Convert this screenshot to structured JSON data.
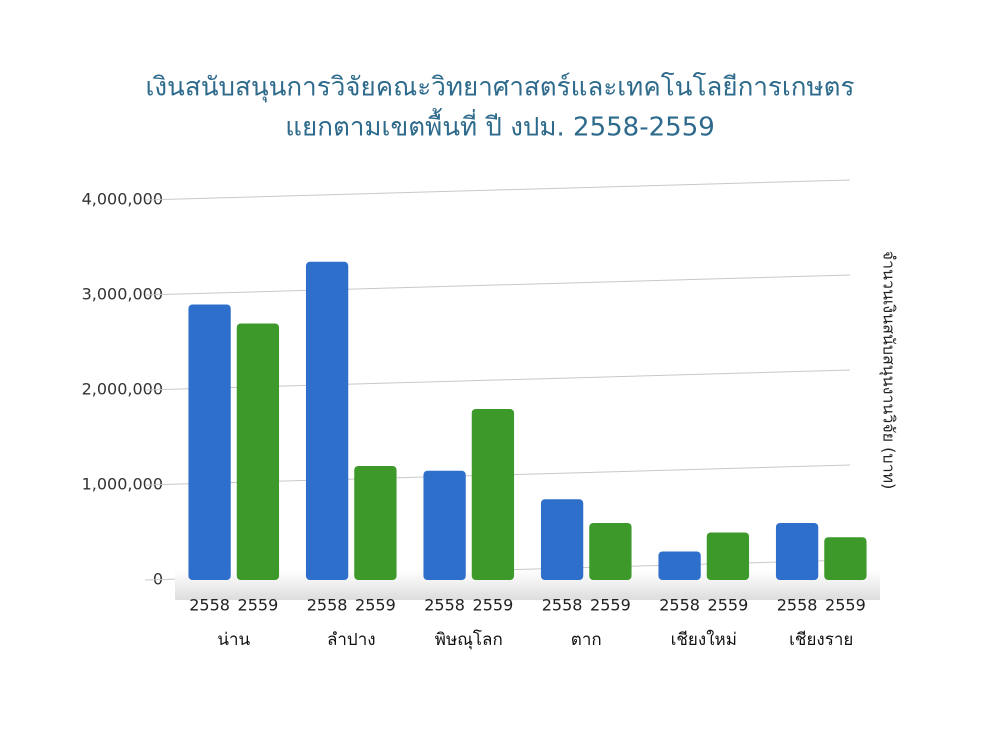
{
  "chart_data": {
    "type": "bar",
    "title": "เงินสนับสนุนการวิจัยคณะวิทยาศาสตร์และเทคโนโลยีการเกษตร",
    "subtitle": "แยกตามเขตพื้นที่ ปี งปม. 2558-2559",
    "y_label": "จำนวนเงินสนับสนุนงานวิจัย (บาท)",
    "categories": [
      "น่าน",
      "ลำปาง",
      "พิษณุโลก",
      "ตาก",
      "เชียงใหม่",
      "เชียงราย"
    ],
    "series": [
      {
        "name": "2558",
        "color": "#2f6fcc",
        "values": [
          2900000,
          3350000,
          1150000,
          850000,
          300000,
          600000
        ]
      },
      {
        "name": "2559",
        "color": "#3d9a2a",
        "values": [
          2700000,
          1200000,
          1800000,
          600000,
          500000,
          450000
        ]
      }
    ],
    "ylim": [
      0,
      4000000
    ],
    "yticks": [
      0,
      {
        "value": 1000000,
        "label": "1,000,000"
      },
      {
        "value": 2000000,
        "label": "2,000,000"
      },
      {
        "value": 3000000,
        "label": "3,000,000"
      },
      {
        "value": 4000000,
        "label": "4,000,000"
      }
    ],
    "grid": true
  }
}
